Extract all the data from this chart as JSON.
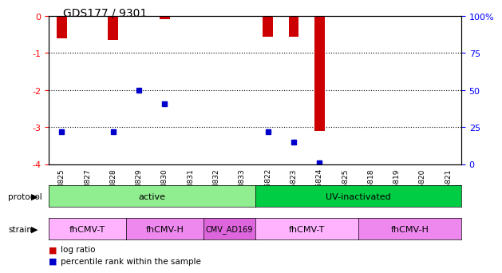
{
  "title": "GDS177 / 9301",
  "samples": [
    "GSM825",
    "GSM827",
    "GSM828",
    "GSM829",
    "GSM830",
    "GSM831",
    "GSM832",
    "GSM833",
    "GSM6822",
    "GSM6823",
    "GSM6824",
    "GSM6825",
    "GSM6818",
    "GSM6819",
    "GSM6820",
    "GSM6821"
  ],
  "log_ratio": [
    -0.6,
    null,
    -0.65,
    -0.02,
    -0.08,
    null,
    null,
    null,
    -0.55,
    -0.55,
    -3.1,
    null,
    null,
    null,
    null,
    null
  ],
  "percentile": [
    22,
    null,
    22,
    50,
    41,
    null,
    null,
    null,
    22,
    15,
    1,
    null,
    null,
    null,
    null,
    null
  ],
  "ylim_left": [
    -4,
    0
  ],
  "ylim_right": [
    0,
    100
  ],
  "yticks_left": [
    0,
    -1,
    -2,
    -3,
    -4
  ],
  "yticks_right": [
    100,
    75,
    50,
    25,
    0
  ],
  "ytick_labels_left": [
    "0",
    "-1",
    "-2",
    "-3",
    "-4"
  ],
  "ytick_labels_right": [
    "100%",
    "75",
    "50",
    "25",
    "0"
  ],
  "protocol_groups": [
    {
      "label": "active",
      "start": 0,
      "end": 8,
      "color": "#90EE90"
    },
    {
      "label": "UV-inactivated",
      "start": 8,
      "end": 16,
      "color": "#00CC44"
    }
  ],
  "strain_groups": [
    {
      "label": "fhCMV-T",
      "start": 0,
      "end": 3,
      "color": "#FFB3FF"
    },
    {
      "label": "fhCMV-H",
      "start": 3,
      "end": 6,
      "color": "#EE88EE"
    },
    {
      "label": "CMV_AD169",
      "start": 6,
      "end": 8,
      "color": "#DD66DD"
    },
    {
      "label": "fhCMV-T",
      "start": 8,
      "end": 12,
      "color": "#FFB3FF"
    },
    {
      "label": "fhCMV-H",
      "start": 12,
      "end": 16,
      "color": "#EE88EE"
    }
  ],
  "bar_color": "#CC0000",
  "dot_color": "#0000CC",
  "grid_color": "#000000",
  "bg_color": "#FFFFFF",
  "bar_width": 0.4
}
